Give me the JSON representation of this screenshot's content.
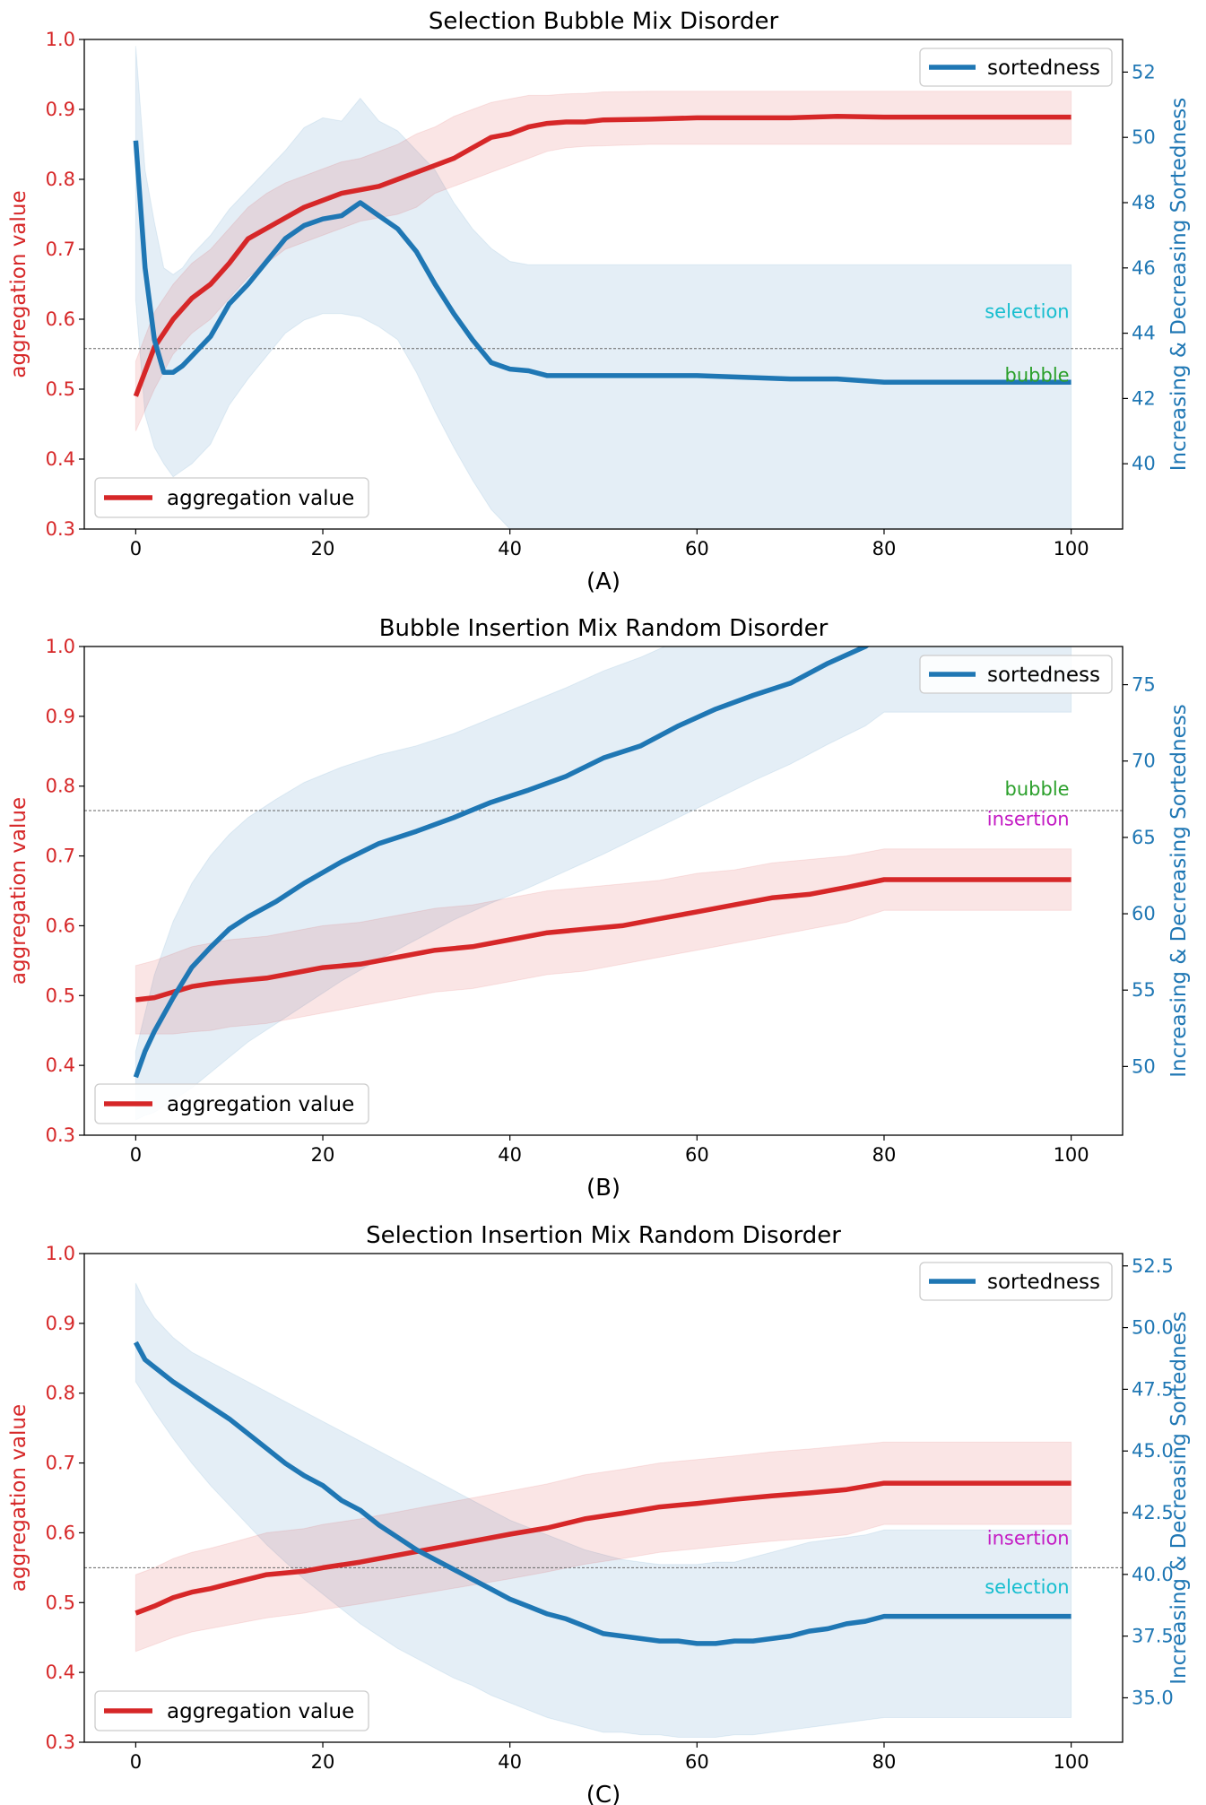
{
  "colors": {
    "aggregation": "#d62728",
    "sortedness": "#1f77b4",
    "selection": "#17becf",
    "bubble": "#2ca02c",
    "insertion": "#c41cc4"
  },
  "chart_data": [
    {
      "type": "line",
      "title": "Selection Bubble Mix Disorder",
      "caption": "(A)",
      "ylabel": "aggregation value",
      "y2label": "Increasing & Decreasing Sortedness",
      "xlim": [
        -5.5,
        105.5
      ],
      "ylim": [
        0.3,
        1.0
      ],
      "y2lim": [
        38.0,
        53.0
      ],
      "xticks": [
        "0",
        "20",
        "40",
        "60",
        "80",
        "100"
      ],
      "yticks": [
        "0.3",
        "0.4",
        "0.5",
        "0.6",
        "0.7",
        "0.8",
        "0.9",
        "1.0"
      ],
      "y2ticks": [
        "40",
        "42",
        "44",
        "46",
        "48",
        "50",
        "52"
      ],
      "legend_sortedness": "sortedness",
      "legend_aggregation": "aggregation value",
      "hline": 0.558,
      "annotations": [
        {
          "text": "selection",
          "color_key": "selection",
          "y": 0.611
        },
        {
          "text": "bubble",
          "color_key": "bubble",
          "y": 0.52
        }
      ],
      "series": [
        {
          "name": "aggregation value",
          "axis": "left",
          "x": [
            0,
            2,
            4,
            6,
            8,
            10,
            12,
            14,
            16,
            18,
            20,
            22,
            24,
            26,
            28,
            30,
            32,
            34,
            36,
            38,
            40,
            42,
            44,
            46,
            48,
            50,
            55,
            60,
            65,
            70,
            75,
            80,
            90,
            100
          ],
          "y": [
            0.49,
            0.56,
            0.6,
            0.63,
            0.65,
            0.68,
            0.715,
            0.73,
            0.745,
            0.76,
            0.77,
            0.78,
            0.785,
            0.79,
            0.8,
            0.81,
            0.82,
            0.83,
            0.845,
            0.86,
            0.865,
            0.875,
            0.88,
            0.882,
            0.882,
            0.885,
            0.886,
            0.888,
            0.888,
            0.888,
            0.89,
            0.889,
            0.889,
            0.889
          ],
          "lower": [
            0.44,
            0.5,
            0.55,
            0.58,
            0.6,
            0.63,
            0.66,
            0.68,
            0.7,
            0.71,
            0.72,
            0.73,
            0.74,
            0.745,
            0.75,
            0.76,
            0.78,
            0.79,
            0.8,
            0.81,
            0.82,
            0.83,
            0.84,
            0.845,
            0.847,
            0.848,
            0.85,
            0.85,
            0.85,
            0.85,
            0.85,
            0.85,
            0.85,
            0.85
          ],
          "upper": [
            0.54,
            0.61,
            0.65,
            0.68,
            0.7,
            0.73,
            0.76,
            0.78,
            0.795,
            0.805,
            0.815,
            0.825,
            0.83,
            0.84,
            0.85,
            0.865,
            0.875,
            0.89,
            0.9,
            0.91,
            0.915,
            0.92,
            0.92,
            0.922,
            0.923,
            0.925,
            0.926,
            0.926,
            0.926,
            0.926,
            0.926,
            0.926,
            0.926,
            0.926
          ]
        },
        {
          "name": "sortedness",
          "axis": "right",
          "x": [
            0,
            1,
            2,
            3,
            4,
            5,
            6,
            8,
            10,
            12,
            14,
            16,
            18,
            20,
            22,
            24,
            26,
            28,
            30,
            32,
            34,
            36,
            38,
            40,
            42,
            44,
            46,
            48,
            50,
            55,
            60,
            65,
            70,
            75,
            80,
            90,
            100
          ],
          "y": [
            49.9,
            46.0,
            43.8,
            42.8,
            42.8,
            43.0,
            43.3,
            43.9,
            44.9,
            45.5,
            46.2,
            46.9,
            47.3,
            47.5,
            47.6,
            48.0,
            47.6,
            47.2,
            46.5,
            45.5,
            44.6,
            43.8,
            43.1,
            42.9,
            42.85,
            42.7,
            42.7,
            42.7,
            42.7,
            42.7,
            42.7,
            42.65,
            42.6,
            42.6,
            42.5,
            42.5,
            42.5
          ],
          "lower": [
            45.0,
            41.5,
            40.5,
            40.0,
            39.6,
            39.8,
            40.0,
            40.6,
            41.8,
            42.6,
            43.3,
            44.0,
            44.4,
            44.6,
            44.6,
            44.5,
            44.2,
            43.8,
            42.8,
            41.6,
            40.5,
            39.5,
            38.6,
            38.0,
            37.6,
            37.4,
            37.2,
            37.1,
            37.05,
            37.0,
            37.05,
            37.0,
            37.0,
            37.0,
            36.9,
            36.9,
            36.9
          ],
          "upper": [
            52.8,
            49.0,
            47.4,
            46.0,
            45.8,
            46.0,
            46.4,
            47.0,
            47.8,
            48.4,
            49.0,
            49.6,
            50.3,
            50.6,
            50.5,
            51.2,
            50.5,
            50.2,
            49.6,
            49.0,
            48.0,
            47.2,
            46.6,
            46.2,
            46.1,
            46.1,
            46.1,
            46.1,
            46.1,
            46.1,
            46.1,
            46.1,
            46.1,
            46.1,
            46.1,
            46.1,
            46.1
          ]
        }
      ]
    },
    {
      "type": "line",
      "title": "Bubble Insertion Mix Random Disorder",
      "caption": "(B)",
      "ylabel": "aggregation value",
      "y2label": "Increasing & Decreasing Sortedness",
      "xlim": [
        -5.5,
        105.5
      ],
      "ylim": [
        0.3,
        1.0
      ],
      "y2lim": [
        45.5,
        77.5
      ],
      "xticks": [
        "0",
        "20",
        "40",
        "60",
        "80",
        "100"
      ],
      "yticks": [
        "0.3",
        "0.4",
        "0.5",
        "0.6",
        "0.7",
        "0.8",
        "0.9",
        "1.0"
      ],
      "y2ticks": [
        "50",
        "55",
        "60",
        "65",
        "70",
        "75"
      ],
      "legend_sortedness": "sortedness",
      "legend_aggregation": "aggregation value",
      "hline": 0.765,
      "annotations": [
        {
          "text": "bubble",
          "color_key": "bubble",
          "y": 0.796
        },
        {
          "text": "insertion",
          "color_key": "insertion",
          "y": 0.753
        }
      ],
      "series": [
        {
          "name": "aggregation value",
          "axis": "left",
          "x": [
            0,
            2,
            4,
            6,
            8,
            10,
            14,
            18,
            20,
            24,
            28,
            32,
            36,
            40,
            44,
            48,
            52,
            56,
            60,
            64,
            68,
            72,
            76,
            80,
            90,
            100
          ],
          "y": [
            0.494,
            0.497,
            0.505,
            0.513,
            0.517,
            0.52,
            0.525,
            0.535,
            0.54,
            0.545,
            0.555,
            0.565,
            0.57,
            0.58,
            0.59,
            0.595,
            0.6,
            0.61,
            0.62,
            0.63,
            0.64,
            0.645,
            0.655,
            0.666,
            0.666,
            0.666
          ],
          "lower": [
            0.445,
            0.445,
            0.445,
            0.448,
            0.45,
            0.455,
            0.46,
            0.47,
            0.475,
            0.485,
            0.495,
            0.505,
            0.51,
            0.52,
            0.53,
            0.535,
            0.545,
            0.555,
            0.565,
            0.575,
            0.585,
            0.595,
            0.605,
            0.622,
            0.622,
            0.622
          ],
          "upper": [
            0.543,
            0.55,
            0.56,
            0.57,
            0.575,
            0.58,
            0.585,
            0.595,
            0.6,
            0.605,
            0.615,
            0.625,
            0.63,
            0.64,
            0.65,
            0.655,
            0.66,
            0.665,
            0.675,
            0.68,
            0.69,
            0.695,
            0.7,
            0.71,
            0.71,
            0.71
          ]
        },
        {
          "name": "sortedness",
          "axis": "right",
          "x": [
            0,
            1,
            2,
            4,
            6,
            8,
            10,
            12,
            15,
            18,
            22,
            26,
            30,
            34,
            38,
            42,
            46,
            50,
            54,
            58,
            62,
            66,
            70,
            74,
            78,
            80,
            90,
            100
          ],
          "y": [
            49.3,
            51.0,
            52.3,
            54.5,
            56.5,
            57.8,
            59.0,
            59.8,
            60.8,
            62.0,
            63.4,
            64.6,
            65.4,
            66.3,
            67.3,
            68.1,
            69.0,
            70.2,
            71.0,
            72.3,
            73.4,
            74.3,
            75.1,
            76.4,
            77.5,
            78.4,
            78.4,
            78.4
          ],
          "lower": [
            46.5,
            46.8,
            47.0,
            47.8,
            48.6,
            49.6,
            50.6,
            51.6,
            52.8,
            54.0,
            55.6,
            57.0,
            58.3,
            59.6,
            60.7,
            61.7,
            62.8,
            63.9,
            65.1,
            66.3,
            67.5,
            68.7,
            69.8,
            71.1,
            72.3,
            73.2,
            73.2,
            73.2
          ],
          "upper": [
            51.0,
            53.5,
            56.0,
            59.5,
            62.0,
            63.8,
            65.2,
            66.3,
            67.5,
            68.6,
            69.6,
            70.4,
            71.0,
            71.8,
            72.8,
            73.8,
            74.8,
            75.9,
            76.8,
            77.9,
            78.9,
            79.6,
            80.4,
            81.4,
            82.4,
            83.1,
            83.1,
            83.1
          ]
        }
      ]
    },
    {
      "type": "line",
      "title": "Selection Insertion Mix Random Disorder",
      "caption": "(C)",
      "ylabel": "aggregation value",
      "y2label": "Increasing & Decreasing Sortedness",
      "xlim": [
        -5.5,
        105.5
      ],
      "ylim": [
        0.3,
        1.0
      ],
      "y2lim": [
        33.2,
        53.0
      ],
      "xticks": [
        "0",
        "20",
        "40",
        "60",
        "80",
        "100"
      ],
      "yticks": [
        "0.3",
        "0.4",
        "0.5",
        "0.6",
        "0.7",
        "0.8",
        "0.9",
        "1.0"
      ],
      "y2ticks": [
        "35.0",
        "37.5",
        "40.0",
        "42.5",
        "45.0",
        "47.5",
        "50.0",
        "52.5"
      ],
      "legend_sortedness": "sortedness",
      "legend_aggregation": "aggregation value",
      "hline": 0.55,
      "annotations": [
        {
          "text": "insertion",
          "color_key": "insertion",
          "y": 0.592
        },
        {
          "text": "selection",
          "color_key": "selection",
          "y": 0.522
        }
      ],
      "series": [
        {
          "name": "aggregation value",
          "axis": "left",
          "x": [
            0,
            2,
            4,
            6,
            8,
            10,
            14,
            18,
            20,
            24,
            28,
            32,
            36,
            40,
            44,
            48,
            52,
            56,
            60,
            64,
            68,
            72,
            76,
            80,
            90,
            100
          ],
          "y": [
            0.485,
            0.495,
            0.507,
            0.515,
            0.52,
            0.527,
            0.54,
            0.545,
            0.55,
            0.558,
            0.568,
            0.578,
            0.588,
            0.598,
            0.607,
            0.62,
            0.628,
            0.637,
            0.642,
            0.648,
            0.653,
            0.657,
            0.662,
            0.671,
            0.671,
            0.671
          ],
          "lower": [
            0.43,
            0.44,
            0.45,
            0.458,
            0.463,
            0.468,
            0.478,
            0.485,
            0.49,
            0.498,
            0.507,
            0.516,
            0.525,
            0.534,
            0.544,
            0.555,
            0.563,
            0.572,
            0.577,
            0.583,
            0.588,
            0.592,
            0.597,
            0.612,
            0.612,
            0.612
          ],
          "upper": [
            0.54,
            0.55,
            0.563,
            0.572,
            0.578,
            0.585,
            0.6,
            0.606,
            0.612,
            0.62,
            0.63,
            0.64,
            0.65,
            0.66,
            0.67,
            0.683,
            0.691,
            0.7,
            0.705,
            0.71,
            0.716,
            0.72,
            0.725,
            0.73,
            0.73,
            0.73
          ]
        },
        {
          "name": "sortedness",
          "axis": "right",
          "x": [
            0,
            1,
            2,
            4,
            6,
            8,
            10,
            12,
            14,
            16,
            18,
            20,
            22,
            24,
            26,
            28,
            30,
            32,
            34,
            36,
            38,
            40,
            42,
            44,
            46,
            48,
            50,
            52,
            54,
            56,
            58,
            60,
            62,
            64,
            66,
            68,
            70,
            72,
            74,
            76,
            78,
            80,
            90,
            100
          ],
          "y": [
            49.4,
            48.7,
            48.4,
            47.8,
            47.3,
            46.8,
            46.3,
            45.7,
            45.1,
            44.5,
            44.0,
            43.6,
            43.0,
            42.6,
            42.0,
            41.5,
            41.0,
            40.6,
            40.2,
            39.8,
            39.4,
            39.0,
            38.7,
            38.4,
            38.2,
            37.9,
            37.6,
            37.5,
            37.4,
            37.3,
            37.3,
            37.2,
            37.2,
            37.3,
            37.3,
            37.4,
            37.5,
            37.7,
            37.8,
            38.0,
            38.1,
            38.3,
            38.3,
            38.3
          ],
          "lower": [
            47.8,
            47.2,
            46.6,
            45.5,
            44.5,
            43.6,
            42.8,
            42.0,
            41.2,
            40.5,
            39.8,
            39.2,
            38.6,
            38.0,
            37.5,
            37.0,
            36.6,
            36.2,
            35.8,
            35.5,
            35.1,
            34.8,
            34.5,
            34.2,
            34.0,
            33.8,
            33.6,
            33.6,
            33.5,
            33.5,
            33.4,
            33.4,
            33.4,
            33.5,
            33.5,
            33.6,
            33.7,
            33.8,
            33.9,
            34.0,
            34.1,
            34.2,
            34.2,
            34.2
          ],
          "upper": [
            51.8,
            51.0,
            50.4,
            49.6,
            49.0,
            48.6,
            48.2,
            47.8,
            47.4,
            47.0,
            46.6,
            46.2,
            45.8,
            45.4,
            45.0,
            44.6,
            44.2,
            43.8,
            43.4,
            43.0,
            42.6,
            42.2,
            41.9,
            41.6,
            41.3,
            41.0,
            40.8,
            40.6,
            40.5,
            40.4,
            40.4,
            40.4,
            40.5,
            40.5,
            40.7,
            40.9,
            41.1,
            41.3,
            41.4,
            41.5,
            41.6,
            41.8,
            41.8,
            41.8
          ]
        }
      ]
    }
  ]
}
